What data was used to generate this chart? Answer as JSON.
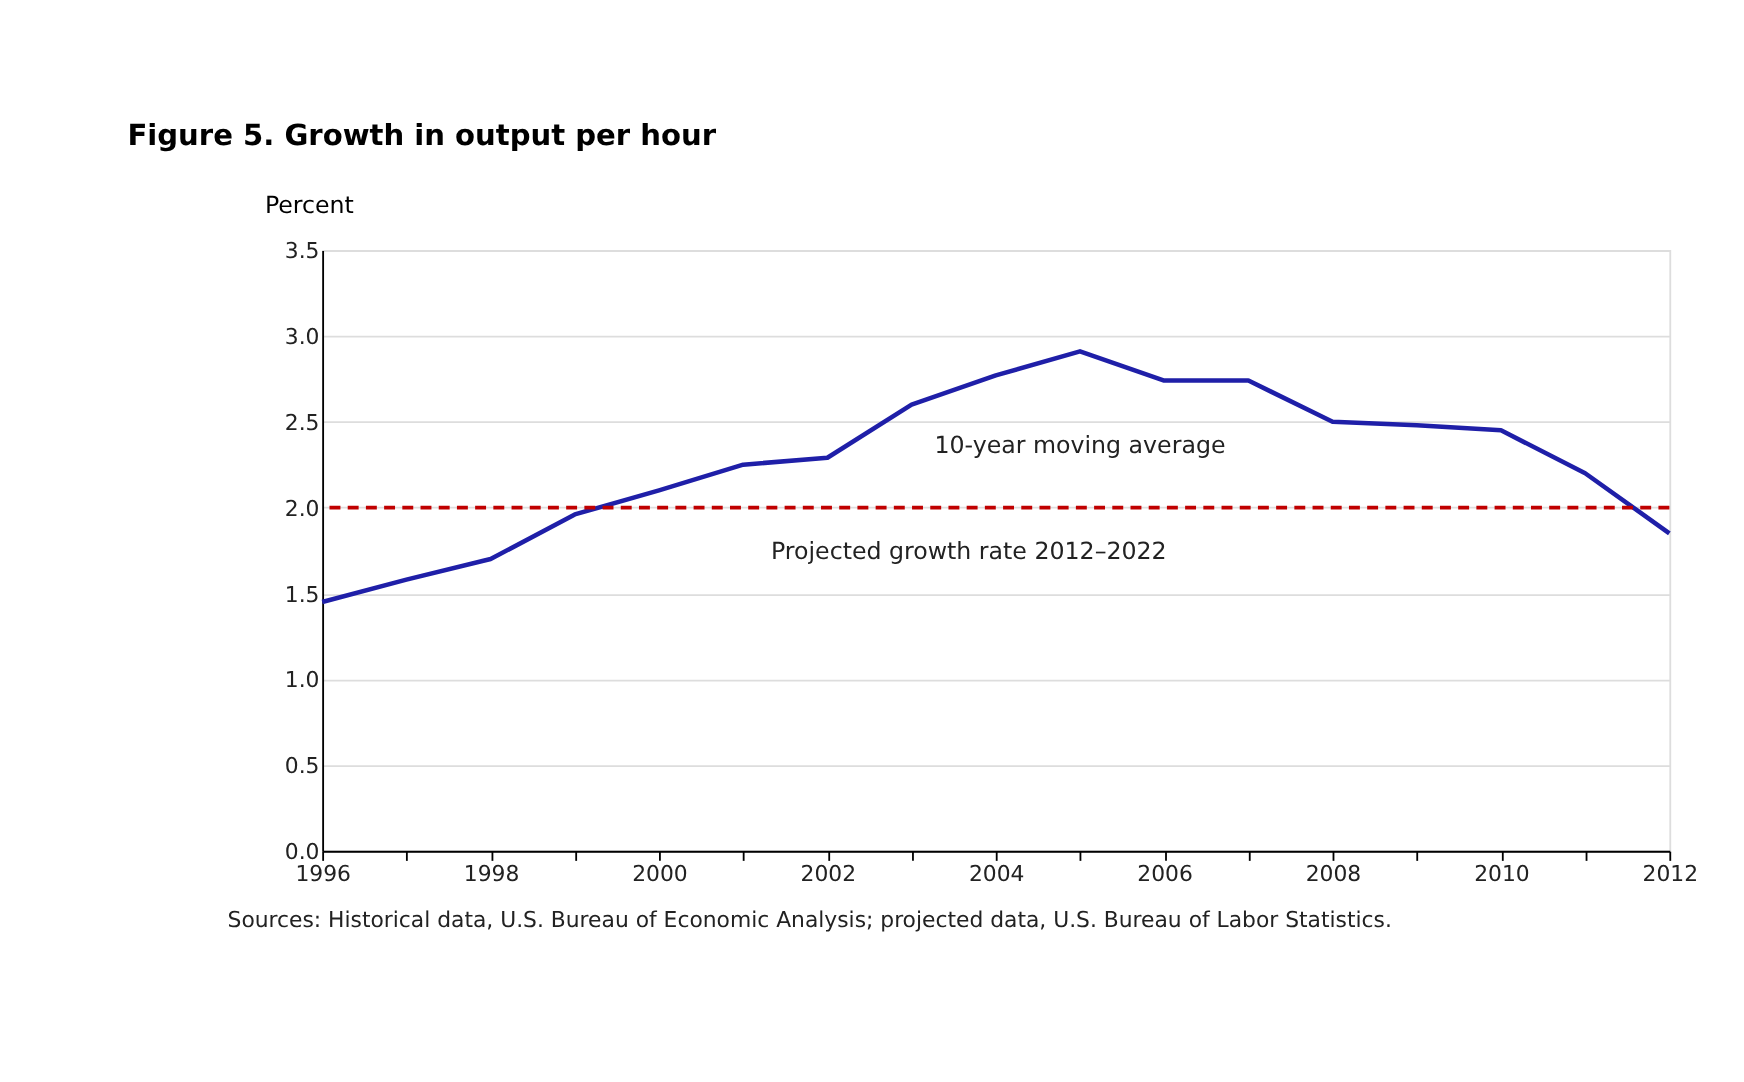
{
  "chart_data": {
    "type": "line",
    "title": "Figure 5. Growth in output per hour",
    "ylabel": "Percent",
    "x": [
      1996,
      1997,
      1998,
      1999,
      2000,
      2001,
      2002,
      2003,
      2004,
      2005,
      2006,
      2007,
      2008,
      2009,
      2010,
      2011,
      2012
    ],
    "series": [
      {
        "name": "10-year moving average",
        "color": "#1f1fa8",
        "values": [
          1.45,
          1.58,
          1.7,
          1.96,
          2.1,
          2.25,
          2.29,
          2.6,
          2.77,
          2.91,
          2.74,
          2.74,
          2.5,
          2.48,
          2.45,
          2.2,
          1.85
        ]
      }
    ],
    "xlim": [
      1996,
      2012
    ],
    "xticks": [
      1996,
      {
        "value": 1997,
        "label": null
      },
      1998,
      {
        "value": 1999,
        "label": null
      },
      2000,
      {
        "value": 2001,
        "label": null
      },
      2002,
      {
        "value": 2003,
        "label": null
      },
      2004,
      {
        "value": 2005,
        "label": null
      },
      2006,
      {
        "value": 2007,
        "label": null
      },
      2008,
      {
        "value": 2009,
        "label": null
      },
      2010,
      {
        "value": 2011,
        "label": null
      },
      2012
    ],
    "ylim": [
      0,
      3.5
    ],
    "yticks": [
      {
        "value": 0,
        "label": "0.0"
      },
      0.5,
      {
        "value": 1,
        "label": "1.0"
      },
      1.5,
      {
        "value": 2,
        "label": "2.0"
      },
      2.5,
      {
        "value": 3,
        "label": "3.0"
      },
      3.5
    ],
    "ref_lines": [
      {
        "axis": "y",
        "value": 2,
        "label": "Projected growth rate 2012–2022",
        "color": "#c00000",
        "line_style": "dashed"
      }
    ],
    "grid": "y",
    "legend": false,
    "marker": "none",
    "line_style": "solid",
    "annotations": [
      "Sources: Historical data, U.S. Bureau of Economic Analysis; projected data, U.S. Bureau of Labor Statistics."
    ]
  }
}
